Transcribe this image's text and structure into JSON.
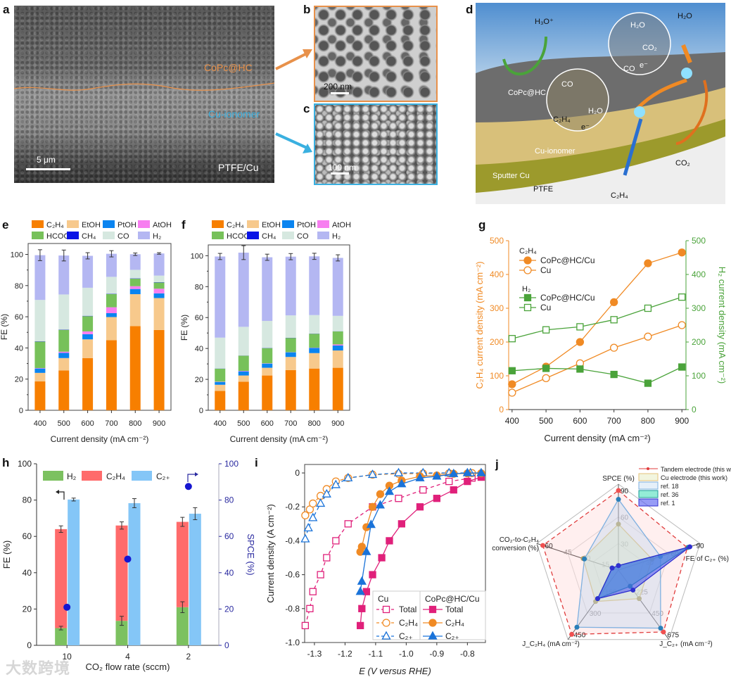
{
  "panel_labels": {
    "a": "a",
    "b": "b",
    "c": "c",
    "d": "d",
    "e": "e",
    "f": "f",
    "g": "g",
    "h": "h",
    "i": "i",
    "j": "j"
  },
  "panel_a": {
    "layer_top": "CoPc@HC",
    "layer_middle": "Cu-ionomer",
    "layer_bottom": "PTFE/Cu",
    "scale_bar": "5 μm"
  },
  "panel_b": {
    "scale_bar": "200 nm"
  },
  "panel_c": {
    "scale_bar": "100 nm"
  },
  "panel_d": {
    "h3o": "H₃O⁺",
    "h2o_top": "H₂O",
    "h2o_inset1": "H₂O",
    "co2_inset1": "CO₂",
    "e_inset1": "e⁻",
    "co_inset1": "CO",
    "copc": "CoPc@HC",
    "co_inset2": "CO",
    "h2o_inset2": "H₂O",
    "c2h4_inset2": "C₂H₄",
    "e_inset2": "e⁻",
    "ionomer": "Cu-ionomer",
    "sputter": "Sputter Cu",
    "ptfe": "PTFE",
    "co2_bottom": "CO₂",
    "c2h4_bottom": "C₂H₄"
  },
  "colors": {
    "C2H4": "#f77f00",
    "EtOH": "#f7c98c",
    "PtOH": "#0a84f0",
    "AtOH": "#f77ef0",
    "HCOOH": "#77c15a",
    "CH4": "#0a14e6",
    "CO": "#d6e8e0",
    "H2": "#b4b7f2",
    "orange": "#f08a24",
    "green": "#4aa33a",
    "blue": "#1a73d9",
    "pink": "#e0207a",
    "red": "#ff6b6b",
    "sky": "#84c6f7",
    "navy": "#2a2aa0"
  },
  "chart_data": [
    {
      "id": "e",
      "type": "bar",
      "stacked": true,
      "title": "",
      "xlabel": "Current density (mA cm⁻²)",
      "ylabel": "FE (%)",
      "ylim": [
        0,
        107
      ],
      "yticks": [
        0,
        20,
        40,
        60,
        80,
        100
      ],
      "categories": [
        "400",
        "500",
        "600",
        "700",
        "800",
        "900"
      ],
      "series": [
        {
          "name": "C₂H₄",
          "key": "C2H4",
          "values": [
            18.5,
            25.5,
            33.5,
            45,
            54,
            51.5
          ]
        },
        {
          "name": "EtOH",
          "key": "EtOH",
          "values": [
            5.5,
            8,
            12,
            14.8,
            20.5,
            20.5
          ]
        },
        {
          "name": "PtOH",
          "key": "PtOH",
          "values": [
            2.8,
            3.3,
            3.3,
            2.5,
            3.3,
            3
          ]
        },
        {
          "name": "AtOH",
          "key": "AtOH",
          "values": [
            0.3,
            0.8,
            1.8,
            3.8,
            1.8,
            3
          ]
        },
        {
          "name": "HCOOH",
          "key": "HCOOH",
          "values": [
            17,
            14,
            9.8,
            8.5,
            4.8,
            4
          ]
        },
        {
          "name": "CH₄",
          "key": "CH4",
          "values": [
            0.2,
            0.2,
            0.2,
            0.2,
            0.2,
            0.2
          ]
        },
        {
          "name": "CO",
          "key": "CO",
          "values": [
            26.5,
            22.5,
            18,
            10.8,
            5.5,
            4.2
          ]
        },
        {
          "name": "H₂",
          "key": "H2",
          "values": [
            28.7,
            25,
            20.5,
            14.8,
            10,
            14.2
          ]
        }
      ],
      "total_error": [
        3.5,
        3.5,
        2,
        2,
        0.8,
        0.5
      ]
    },
    {
      "id": "f",
      "type": "bar",
      "stacked": true,
      "title": "",
      "xlabel": "Current density (mA cm⁻²)",
      "ylabel": "FE (%)",
      "ylim": [
        0,
        107
      ],
      "yticks": [
        0,
        20,
        40,
        60,
        80,
        100
      ],
      "categories": [
        "400",
        "500",
        "600",
        "700",
        "800",
        "900"
      ],
      "series": [
        {
          "name": "C₂H₄",
          "key": "C2H4",
          "values": [
            12.5,
            18.5,
            22.5,
            26,
            27,
            27.5
          ]
        },
        {
          "name": "EtOH",
          "key": "EtOH",
          "values": [
            4,
            4,
            5,
            8.5,
            10,
            11.2
          ]
        },
        {
          "name": "PtOH",
          "key": "PtOH",
          "values": [
            1.8,
            2.7,
            2.7,
            3,
            3.3,
            3.2
          ]
        },
        {
          "name": "AtOH",
          "key": "AtOH",
          "values": [
            0.2,
            0.3,
            0.2,
            0.1,
            0.2,
            0.7
          ]
        },
        {
          "name": "HCOOH",
          "key": "HCOOH",
          "values": [
            8.4,
            9.8,
            9.8,
            9.2,
            9,
            8.4
          ]
        },
        {
          "name": "CH₄",
          "key": "CH4",
          "values": [
            0.1,
            0.1,
            0.1,
            0.1,
            0.1,
            0.1
          ]
        },
        {
          "name": "CO",
          "key": "CO",
          "values": [
            20,
            18.6,
            17.5,
            14.5,
            12,
            10
          ]
        },
        {
          "name": "H₂",
          "key": "H2",
          "values": [
            52.5,
            48,
            41.2,
            38,
            38,
            37.5
          ]
        }
      ],
      "total_error": [
        2,
        4.5,
        2,
        2,
        2,
        2
      ]
    },
    {
      "id": "g",
      "type": "line",
      "xlabel": "Current density (mA cm⁻²)",
      "ylabel": "C₂H₄ current density (mA cm⁻²)",
      "y2label": "H₂ current density (mA cm⁻²)",
      "xlim": [
        390,
        912
      ],
      "ylim": [
        0,
        500
      ],
      "y2lim": [
        0,
        500
      ],
      "xticks": [
        400,
        500,
        600,
        700,
        800,
        900
      ],
      "yticks": [
        0,
        100,
        200,
        300,
        400,
        500
      ],
      "legend_groups": [
        "C₂H₄",
        "H₂"
      ],
      "x": [
        400,
        500,
        600,
        700,
        800,
        900
      ],
      "series": [
        {
          "name": "CoPc@HC/Cu",
          "group": "C₂H₄",
          "axis": "left",
          "marker": "filled-circle",
          "values": [
            75,
            127,
            200,
            318,
            433,
            465
          ]
        },
        {
          "name": "Cu",
          "group": "C₂H₄",
          "axis": "left",
          "marker": "open-circle",
          "values": [
            50,
            93,
            137,
            183,
            216,
            250
          ]
        },
        {
          "name": "CoPc@HC/Cu",
          "group": "H₂",
          "axis": "right",
          "marker": "filled-square",
          "values": [
            115,
            122,
            120,
            104,
            78,
            126
          ]
        },
        {
          "name": "Cu",
          "group": "H₂",
          "axis": "right",
          "marker": "open-square",
          "values": [
            210,
            236,
            245,
            266,
            300,
            333
          ]
        }
      ]
    },
    {
      "id": "h",
      "type": "bar",
      "xlabel": "CO₂ flow rate (sccm)",
      "ylabel": "FE (%)",
      "y2label": "SPCE (%)",
      "ylim": [
        0,
        100
      ],
      "y2lim": [
        0,
        100
      ],
      "yticks": [
        0,
        20,
        40,
        60,
        80,
        100
      ],
      "categories": [
        "10",
        "4",
        "2"
      ],
      "series": [
        {
          "name": "H₂",
          "values": [
            9.5,
            13.5,
            21
          ],
          "error": [
            1,
            2.5,
            3
          ]
        },
        {
          "name": "C₂H₄",
          "values": [
            54.5,
            52.5,
            47
          ],
          "error": [
            1.8,
            2,
            2.5
          ]
        },
        {
          "name": "C₂₊",
          "values": [
            80.3,
            78.3,
            72.5
          ],
          "error": [
            0.8,
            2.5,
            3.3
          ]
        },
        {
          "name": "SPCE",
          "axis": "right",
          "values": [
            21,
            47.5,
            87.5
          ]
        }
      ]
    },
    {
      "id": "i",
      "type": "line",
      "xlabel": "E (V versus RHE)",
      "ylabel": "Current density (A cm⁻²)",
      "xlim": [
        -1.332,
        -0.741
      ],
      "ylim": [
        -1.0,
        0.05
      ],
      "xticks": [
        -1.3,
        -1.2,
        -1.1,
        -1.0,
        -0.9,
        -0.8
      ],
      "xticklabels": [
        "-1.3",
        "-1.2",
        "-1.1",
        "-1.0",
        "-0.9",
        "-0.8"
      ],
      "yticks": [
        0,
        -0.2,
        -0.4,
        -0.6,
        -0.8,
        -1.0
      ],
      "yticklabels": [
        "0",
        "-0.2",
        "-0.4",
        "-0.6",
        "-0.8",
        "-1.0"
      ],
      "legend_headers": [
        "Cu",
        "CoPc@HC/Cu"
      ],
      "series": [
        {
          "name": "Total",
          "group": "Cu",
          "style": "dashed",
          "marker": "open-square",
          "color": "pink",
          "x": [
            -1.33,
            -1.315,
            -1.305,
            -1.28,
            -1.26,
            -1.23,
            -1.19,
            -1.11,
            -1.025,
            -0.945,
            -0.86,
            -0.785
          ],
          "y": [
            -0.9,
            -0.8,
            -0.7,
            -0.6,
            -0.5,
            -0.4,
            -0.3,
            -0.2,
            -0.15,
            -0.1,
            -0.05,
            -0.03
          ]
        },
        {
          "name": "C₂H₄",
          "group": "Cu",
          "style": "dashed",
          "marker": "open-circle",
          "color": "orange",
          "x": [
            -1.33,
            -1.315,
            -1.305,
            -1.28,
            -1.26,
            -1.23,
            -1.19,
            -1.11,
            -1.025,
            -0.945,
            -0.86,
            -0.785
          ],
          "y": [
            -0.25,
            -0.215,
            -0.18,
            -0.135,
            -0.095,
            -0.05,
            -0.03,
            -0.01,
            -0.005,
            -0.003,
            -0.002,
            -0.001
          ]
        },
        {
          "name": "C₂₊",
          "group": "Cu",
          "style": "dashed",
          "marker": "open-triangle",
          "color": "blue",
          "x": [
            -1.33,
            -1.32,
            -1.305,
            -1.28,
            -1.26,
            -1.23,
            -1.19,
            -1.11,
            -1.025,
            -0.945,
            -0.86,
            -0.79
          ],
          "y": [
            -0.39,
            -0.325,
            -0.265,
            -0.18,
            -0.125,
            -0.07,
            -0.03,
            -0.01,
            0,
            0,
            0,
            0
          ]
        },
        {
          "name": "Total",
          "group": "CoPc@HC/Cu",
          "style": "solid",
          "marker": "filled-square",
          "color": "pink",
          "x": [
            -1.15,
            -1.145,
            -1.13,
            -1.11,
            -1.08,
            -1.055,
            -1.015,
            -0.955,
            -0.9,
            -0.845,
            -0.8,
            -0.755
          ],
          "y": [
            -0.9,
            -0.8,
            -0.7,
            -0.6,
            -0.5,
            -0.4,
            -0.3,
            -0.2,
            -0.15,
            -0.1,
            -0.05,
            -0.025
          ]
        },
        {
          "name": "C₂H₄",
          "group": "CoPc@HC/Cu",
          "style": "solid",
          "marker": "filled-circle",
          "color": "orange",
          "x": [
            -1.15,
            -1.145,
            -1.13,
            -1.11,
            -1.085,
            -1.055,
            -1.015,
            -0.955,
            -0.9,
            -0.845,
            -0.8,
            -0.755
          ],
          "y": [
            -0.465,
            -0.435,
            -0.32,
            -0.2,
            -0.125,
            -0.075,
            -0.045,
            -0.02,
            -0.015,
            -0.005,
            -0.003,
            -0.002
          ]
        },
        {
          "name": "C₂₊",
          "group": "CoPc@HC/Cu",
          "style": "solid",
          "marker": "filled-triangle",
          "color": "blue",
          "x": [
            -1.15,
            -1.145,
            -1.13,
            -1.115,
            -1.085,
            -1.055,
            -1.015,
            -0.955,
            -0.9,
            -0.845,
            -0.8,
            -0.755
          ],
          "y": [
            -0.7,
            -0.64,
            -0.465,
            -0.305,
            -0.19,
            -0.11,
            -0.065,
            -0.03,
            -0.02,
            -0.005,
            0,
            0
          ]
        }
      ]
    },
    {
      "id": "j",
      "type": "radar",
      "axes": [
        {
          "label": "SPCE (%)",
          "max": 90,
          "ticks": [
            30,
            60,
            90
          ]
        },
        {
          "label": "FE of C₂₊ (%)",
          "max": 90,
          "ticks": [
            30,
            60,
            90
          ]
        },
        {
          "label": "J_C₂₊ (mA cm⁻²)",
          "max": 675,
          "ticks": [
            225,
            450,
            675
          ]
        },
        {
          "label": "J_C₂H₄ (mA cm⁻²)",
          "max": 450,
          "ticks": [
            150,
            300,
            450
          ]
        },
        {
          "label": "CO₂-to-C₂H₄ conversion (%)",
          "max": 60,
          "ticks": [
            15,
            30,
            45,
            60
          ]
        }
      ],
      "series": [
        {
          "name": "Tandem electrode (this work)",
          "values": [
            90,
            82,
            650,
            450,
            60
          ]
        },
        {
          "name": "Cu electrode (this work)",
          "values": [
            52,
            40,
            300,
            220,
            28
          ]
        },
        {
          "name": "ref. 18",
          "values": [
            80,
            50,
            610,
            400,
            27
          ]
        },
        {
          "name": "ref. 36",
          "values": [
            5,
            83,
            170,
            200,
            5
          ]
        },
        {
          "name": "ref. 1",
          "values": [
            5,
            85,
            210,
            200,
            5
          ]
        }
      ]
    }
  ],
  "watermark": "大数跨境"
}
